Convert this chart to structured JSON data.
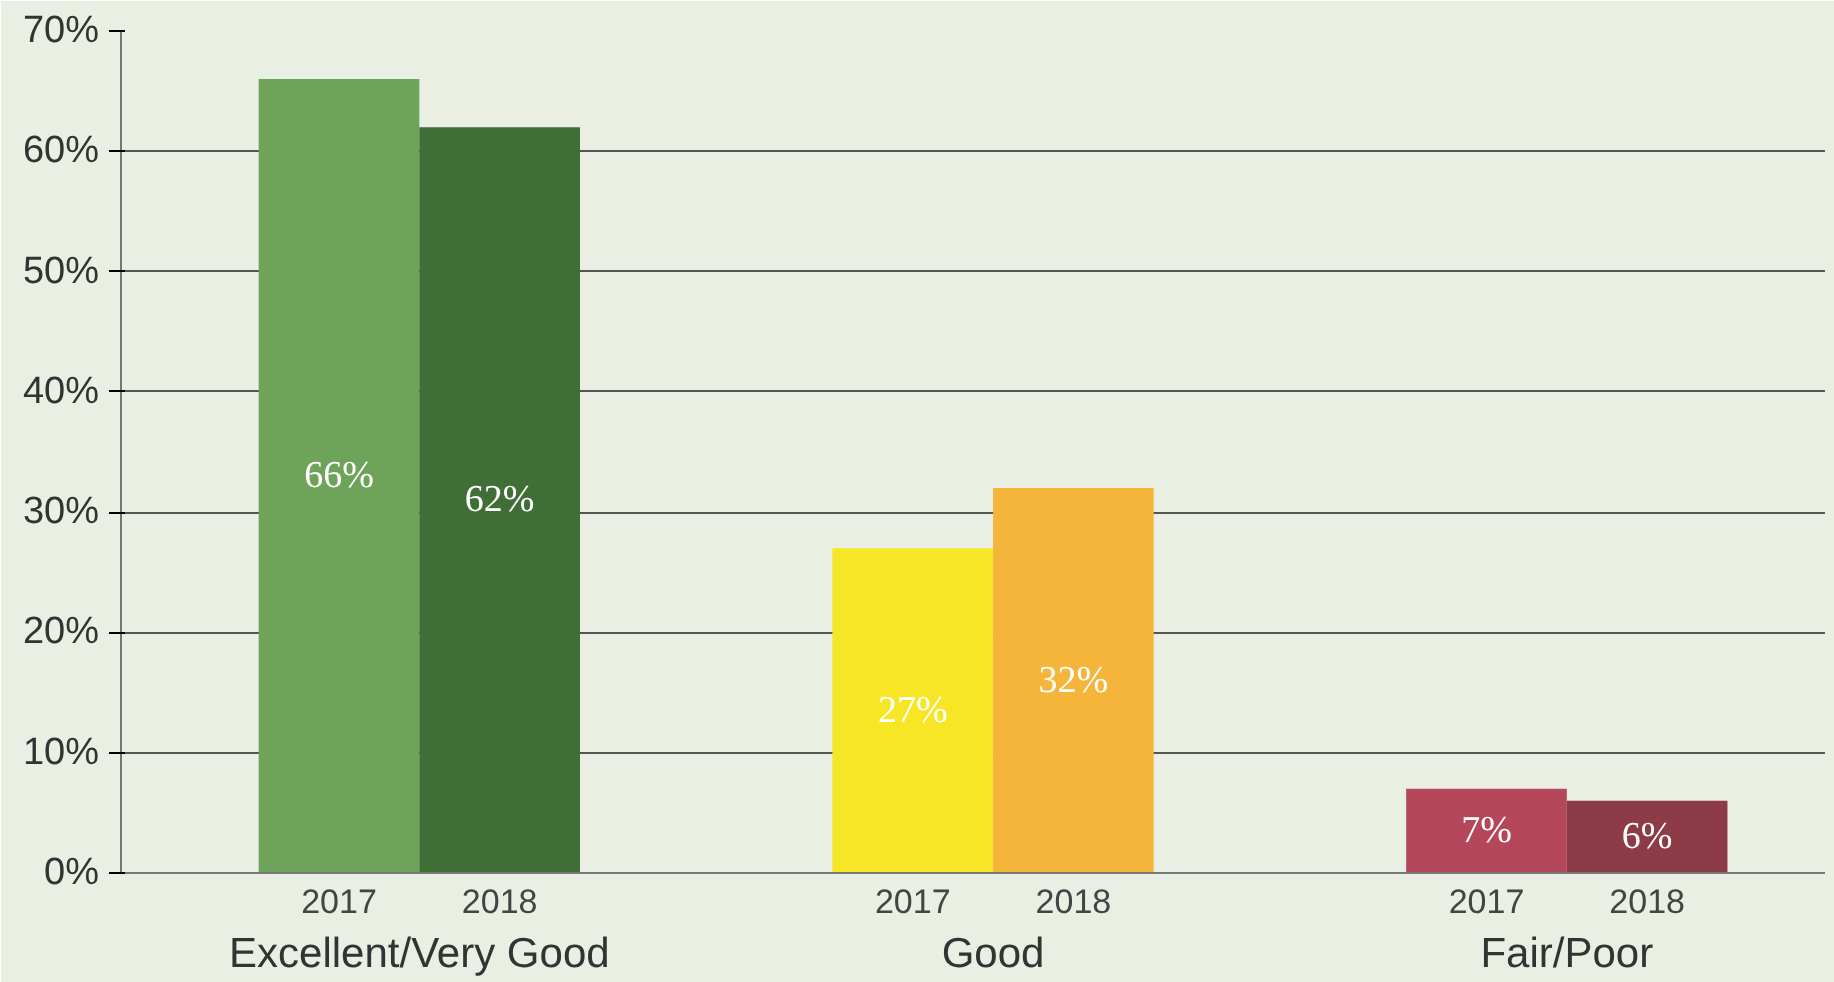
{
  "chart_data": {
    "type": "bar",
    "categories": [
      "Excellent/Very Good",
      "Good",
      "Fair/Poor"
    ],
    "series": [
      {
        "name": "2017",
        "colors": [
          "#6ea35a",
          "#f7e626",
          "#b5475a"
        ],
        "values": [
          66,
          27,
          7
        ]
      },
      {
        "name": "2018",
        "colors": [
          "#3f6e36",
          "#f5b43a",
          "#8c3b47"
        ],
        "values": [
          62,
          32,
          6
        ]
      }
    ],
    "ylim": [
      0,
      70
    ],
    "yticks": [
      {
        "value": 0,
        "label": "0%"
      },
      {
        "value": 10,
        "label": "10%"
      },
      {
        "value": 20,
        "label": "20%"
      },
      {
        "value": 30,
        "label": "30%"
      },
      {
        "value": 40,
        "label": "40%"
      },
      {
        "value": 50,
        "label": "50%"
      },
      {
        "value": 60,
        "label": "60%"
      },
      {
        "value": 70,
        "label": "70%"
      }
    ],
    "value_labels": [
      [
        "66%",
        "27%",
        "7%"
      ],
      [
        "62%",
        "32%",
        "6%"
      ]
    ],
    "grid": "y"
  }
}
